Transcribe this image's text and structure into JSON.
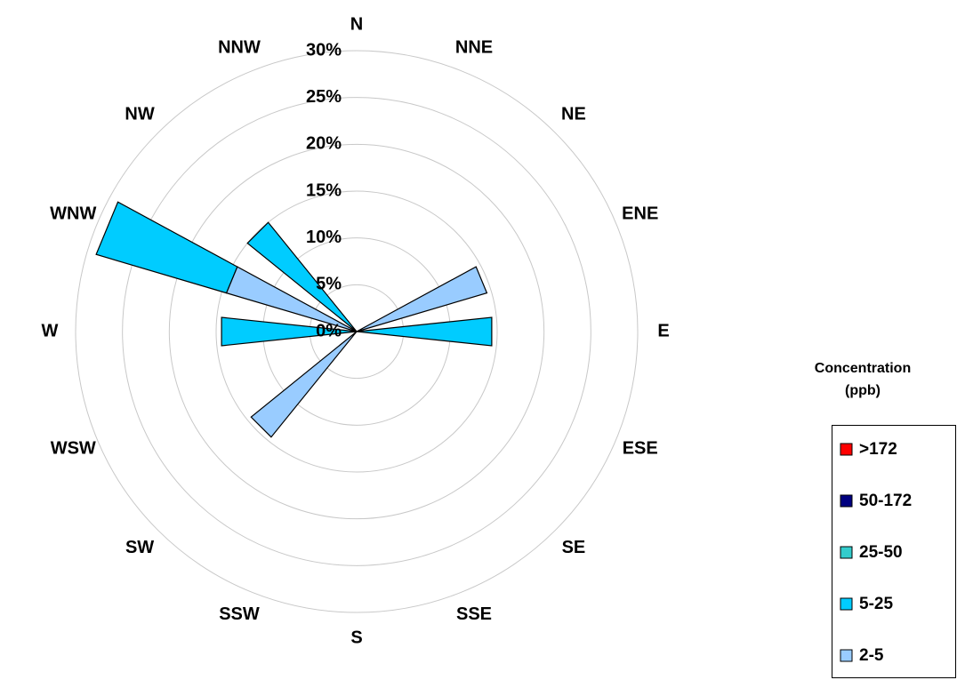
{
  "chart_data": {
    "type": "windrose",
    "categories": [
      "N",
      "NNE",
      "NE",
      "ENE",
      "E",
      "ESE",
      "SE",
      "SSE",
      "S",
      "SSW",
      "SW",
      "WSW",
      "W",
      "WNW",
      "NW",
      "NNW"
    ],
    "series": [
      {
        "name": "2-5",
        "color": "#99ccff",
        "values": [
          0,
          0,
          0,
          14.5,
          0,
          0,
          0,
          0,
          0,
          0,
          14.5,
          0,
          0,
          14.5,
          0,
          0
        ]
      },
      {
        "name": "5-25",
        "color": "#00ccff",
        "values": [
          0,
          0,
          0,
          0,
          14.5,
          0,
          0,
          0,
          0,
          0,
          0,
          0,
          14.5,
          14.5,
          15,
          0
        ]
      },
      {
        "name": "25-50",
        "color": "#33cccc",
        "values": [
          0,
          0,
          0,
          0,
          0,
          0,
          0,
          0,
          0,
          0,
          0,
          0,
          0,
          0,
          0,
          0
        ]
      },
      {
        "name": "50-172",
        "color": "#000080",
        "values": [
          0,
          0,
          0,
          0,
          0,
          0,
          0,
          0,
          0,
          0,
          0,
          0,
          0,
          0,
          0,
          0
        ]
      },
      {
        "name": ">172",
        "color": "#ff0000",
        "values": [
          0,
          0,
          0,
          0,
          0,
          0,
          0,
          0,
          0,
          0,
          0,
          0,
          0,
          0,
          0,
          0
        ]
      }
    ],
    "legend_title": "Concentration (ppb)",
    "ylim": [
      0,
      30
    ],
    "yticks": [
      {
        "value": 0,
        "label": "0%"
      },
      {
        "value": 5,
        "label": "5%"
      },
      {
        "value": 10,
        "label": "10%"
      },
      {
        "value": 15,
        "label": "15%"
      },
      {
        "value": 20,
        "label": "20%"
      },
      {
        "value": 25,
        "label": "25%"
      },
      {
        "value": 30,
        "label": "30%"
      }
    ],
    "grid": true,
    "legend": "right"
  }
}
